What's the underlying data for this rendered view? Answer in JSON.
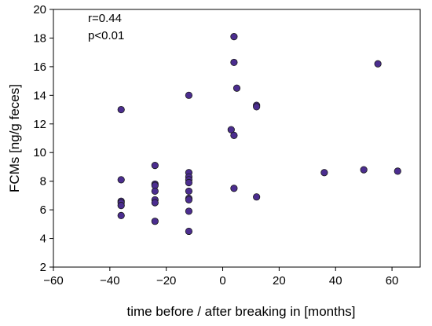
{
  "chart_data": {
    "type": "scatter",
    "title": "",
    "xlabel": "time before / after breaking in [months]",
    "ylabel": "FCMs [ng/g feces]",
    "xlim": [
      -60,
      70
    ],
    "ylim": [
      2,
      20
    ],
    "xticks": [
      -60,
      -40,
      -20,
      0,
      20,
      40,
      60
    ],
    "yticks": [
      2,
      4,
      6,
      8,
      10,
      12,
      14,
      16,
      18,
      20
    ],
    "xtick_labels": [
      "−60",
      "−40",
      "−20",
      "0",
      "20",
      "40",
      "60"
    ],
    "ytick_labels": [
      "2",
      "4",
      "6",
      "8",
      "10",
      "12",
      "14",
      "16",
      "18",
      "20"
    ],
    "grid": false,
    "legend": "none",
    "annotations": [
      "r=0.44",
      "p<0.01"
    ],
    "marker_color": "#4b2d8f",
    "marker_edge": "#1a1a1a",
    "points": [
      {
        "x": -36,
        "y": 13.0
      },
      {
        "x": -36,
        "y": 8.1
      },
      {
        "x": -36,
        "y": 6.6
      },
      {
        "x": -36,
        "y": 6.5
      },
      {
        "x": -36,
        "y": 6.3
      },
      {
        "x": -36,
        "y": 5.6
      },
      {
        "x": -24,
        "y": 9.1
      },
      {
        "x": -24,
        "y": 7.8
      },
      {
        "x": -24,
        "y": 7.7
      },
      {
        "x": -24,
        "y": 7.3
      },
      {
        "x": -24,
        "y": 6.7
      },
      {
        "x": -24,
        "y": 6.5
      },
      {
        "x": -24,
        "y": 5.2
      },
      {
        "x": -12,
        "y": 14.0
      },
      {
        "x": -12,
        "y": 8.6
      },
      {
        "x": -12,
        "y": 8.3
      },
      {
        "x": -12,
        "y": 8.1
      },
      {
        "x": -12,
        "y": 7.9
      },
      {
        "x": -12,
        "y": 7.3
      },
      {
        "x": -12,
        "y": 6.8
      },
      {
        "x": -12,
        "y": 6.7
      },
      {
        "x": -12,
        "y": 5.9
      },
      {
        "x": -12,
        "y": 4.5
      },
      {
        "x": 3,
        "y": 11.6
      },
      {
        "x": 4,
        "y": 18.1
      },
      {
        "x": 4,
        "y": 16.3
      },
      {
        "x": 4,
        "y": 11.2
      },
      {
        "x": 4,
        "y": 7.5
      },
      {
        "x": 5,
        "y": 14.5
      },
      {
        "x": 12,
        "y": 13.3
      },
      {
        "x": 12,
        "y": 13.2
      },
      {
        "x": 12,
        "y": 6.9
      },
      {
        "x": 36,
        "y": 8.6
      },
      {
        "x": 50,
        "y": 8.8
      },
      {
        "x": 55,
        "y": 16.2
      },
      {
        "x": 62,
        "y": 8.7
      }
    ]
  }
}
